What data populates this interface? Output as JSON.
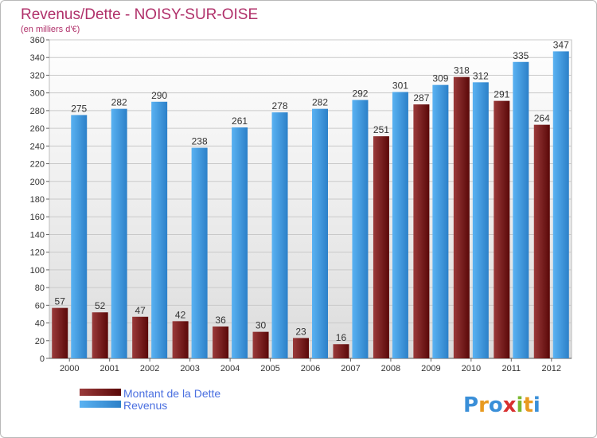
{
  "chart_data": {
    "type": "bar",
    "title": "Revenus/Dette - NOISY-SUR-OISE",
    "subtitle": "(en milliers d'€)",
    "categories": [
      "2000",
      "2001",
      "2002",
      "2003",
      "2004",
      "2005",
      "2006",
      "2007",
      "2008",
      "2009",
      "2010",
      "2011",
      "2012"
    ],
    "series": [
      {
        "name": "Montant de la Dette",
        "color": "#7a1a1a",
        "values": [
          57,
          52,
          47,
          42,
          36,
          30,
          23,
          16,
          251,
          287,
          318,
          291,
          264
        ]
      },
      {
        "name": "Revenus",
        "color": "#3f9be0",
        "values": [
          275,
          282,
          290,
          238,
          261,
          278,
          282,
          292,
          301,
          309,
          312,
          335,
          347
        ]
      }
    ],
    "ylim": [
      0,
      360
    ],
    "ytick_step": 20,
    "grid": true,
    "legend_position": "bottom-left"
  },
  "watermark": {
    "text": "Proxiti"
  }
}
